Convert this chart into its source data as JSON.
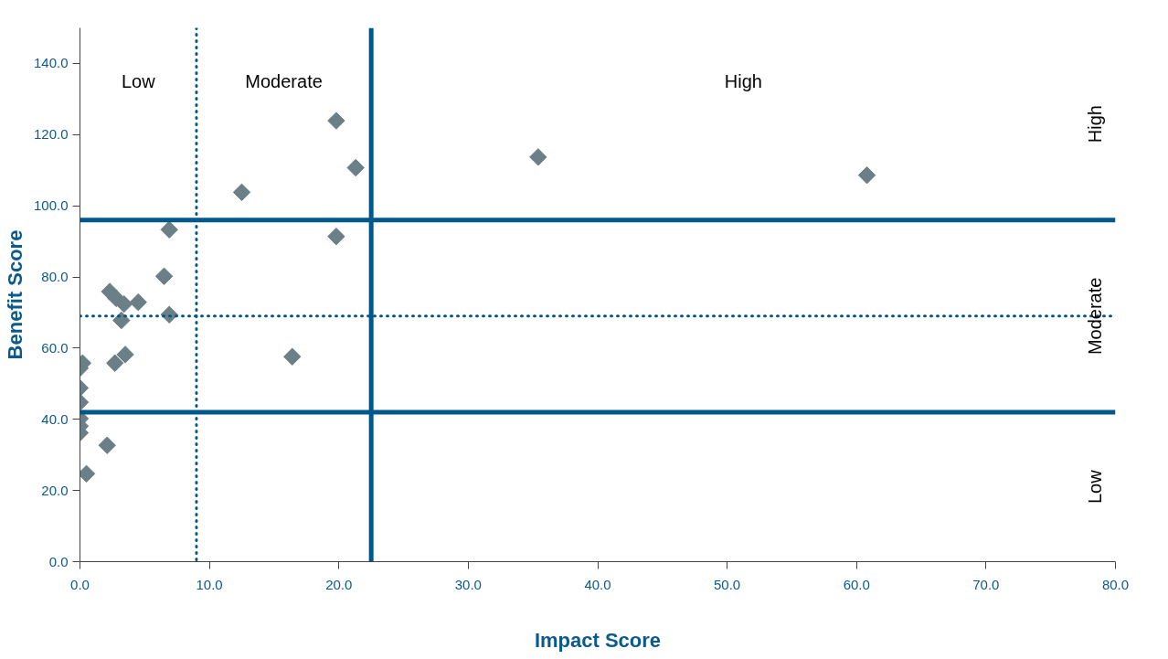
{
  "chart_data": {
    "type": "scatter",
    "xlabel": "Impact Score",
    "ylabel": "Benefit Score",
    "marker": "diamond",
    "grid": false,
    "xlim": [
      0,
      80
    ],
    "ylim": [
      0,
      150
    ],
    "xticks": [
      {
        "value": 0,
        "label": "0.0"
      },
      {
        "value": 10,
        "label": "10.0"
      },
      {
        "value": 20,
        "label": "20.0"
      },
      {
        "value": 30,
        "label": "30.0"
      },
      {
        "value": 40,
        "label": "40.0"
      },
      {
        "value": 50,
        "label": "50.0"
      },
      {
        "value": 60,
        "label": "60.0"
      },
      {
        "value": 70,
        "label": "70.0"
      },
      {
        "value": 80,
        "label": "80.0"
      }
    ],
    "yticks": [
      {
        "value": 0,
        "label": "0.0"
      },
      {
        "value": 20,
        "label": "20.0"
      },
      {
        "value": 40,
        "label": "40.0"
      },
      {
        "value": 60,
        "label": "60.0"
      },
      {
        "value": 80,
        "label": "80.0"
      },
      {
        "value": 100,
        "label": "100.0"
      },
      {
        "value": 120,
        "label": "120.0"
      },
      {
        "value": 140,
        "label": "140.0"
      }
    ],
    "series": [
      {
        "color": "#6b7f86",
        "x": [
          6.9,
          19.8,
          21.3,
          12.5,
          35.4,
          60.8,
          19.8,
          16.4,
          6.5,
          2.3,
          2.8,
          3.4,
          4.5,
          3.2,
          6.9,
          3.5,
          2.7,
          0.2,
          0,
          0,
          0,
          0,
          0,
          0,
          2.1,
          0.5
        ],
        "values": [
          93.3,
          123.9,
          110.7,
          103.8,
          113.7,
          108.6,
          91.4,
          57.6,
          80.2,
          75.9,
          74.0,
          72.4,
          72.9,
          67.8,
          69.4,
          58.2,
          55.8,
          55.8,
          54.4,
          48.8,
          44.8,
          40.2,
          38.1,
          36.2,
          32.7,
          24.7
        ]
      }
    ],
    "ref_lines": [
      {
        "axis": "x",
        "value": 9,
        "color": "#00578a",
        "line_style": "dotted"
      },
      {
        "axis": "x",
        "value": 22.5,
        "color": "#00578a",
        "line_style": "solid"
      },
      {
        "axis": "y",
        "value": 96,
        "color": "#00578a",
        "line_style": "solid"
      },
      {
        "axis": "y",
        "value": 69,
        "color": "#00578a",
        "line_style": "dotted"
      },
      {
        "axis": "y",
        "value": 42,
        "color": "#00578a",
        "line_style": "solid"
      }
    ],
    "annotations": [
      "Low",
      "Moderate",
      "High",
      "Low",
      "Moderate",
      "High"
    ]
  }
}
